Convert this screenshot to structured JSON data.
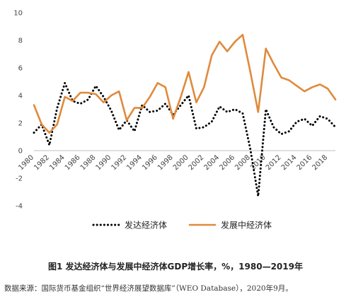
{
  "caption": "图1  发达经济体与发展中经济体GDP增长率，%，1980—2019年",
  "source": "数据来源：国际货币基金组织“世界经济展望数据库”（WEO Database），2020年9月。",
  "chart_data": {
    "type": "line",
    "x": [
      1980,
      1981,
      1982,
      1983,
      1984,
      1985,
      1986,
      1987,
      1988,
      1989,
      1990,
      1991,
      1992,
      1993,
      1994,
      1995,
      1996,
      1997,
      1998,
      1999,
      2000,
      2001,
      2002,
      2003,
      2004,
      2005,
      2006,
      2007,
      2008,
      2009,
      2010,
      2011,
      2012,
      2013,
      2014,
      2015,
      2016,
      2017,
      2018,
      2019
    ],
    "x_ticks": [
      1980,
      1982,
      1984,
      1986,
      1988,
      1990,
      1992,
      1994,
      1996,
      1998,
      2000,
      2002,
      2004,
      2006,
      2008,
      2010,
      2012,
      2014,
      2016,
      2018
    ],
    "y_ticks": [
      10,
      8,
      6,
      4,
      2,
      0,
      -2,
      -4
    ],
    "ylim": [
      -4,
      10
    ],
    "xlim": [
      1980,
      2019
    ],
    "grid": false,
    "legend_position": "bottom",
    "series": [
      {
        "name": "发达经济体",
        "style": "dotted",
        "color": "#000000",
        "values": [
          1.3,
          1.9,
          0.4,
          3.1,
          4.9,
          3.6,
          3.4,
          3.7,
          4.7,
          3.9,
          2.9,
          1.5,
          2.2,
          1.4,
          3.3,
          2.8,
          2.9,
          3.4,
          2.6,
          3.3,
          4.0,
          1.6,
          1.7,
          2.1,
          3.2,
          2.8,
          3.0,
          2.7,
          0.1,
          -3.3,
          3.0,
          1.7,
          1.2,
          1.4,
          2.1,
          2.3,
          1.8,
          2.5,
          2.3,
          1.7
        ]
      },
      {
        "name": "发展中经济体",
        "style": "solid",
        "color": "#e08a3c",
        "values": [
          3.3,
          1.9,
          1.3,
          1.9,
          3.9,
          3.6,
          4.2,
          4.2,
          4.1,
          3.5,
          4.0,
          4.3,
          2.2,
          3.1,
          3.1,
          3.9,
          4.9,
          4.6,
          2.3,
          3.9,
          5.7,
          3.5,
          4.6,
          6.9,
          7.9,
          7.2,
          7.9,
          8.4,
          5.7,
          2.8,
          7.4,
          6.3,
          5.3,
          5.1,
          4.7,
          4.3,
          4.6,
          4.8,
          4.5,
          3.7
        ]
      }
    ]
  }
}
